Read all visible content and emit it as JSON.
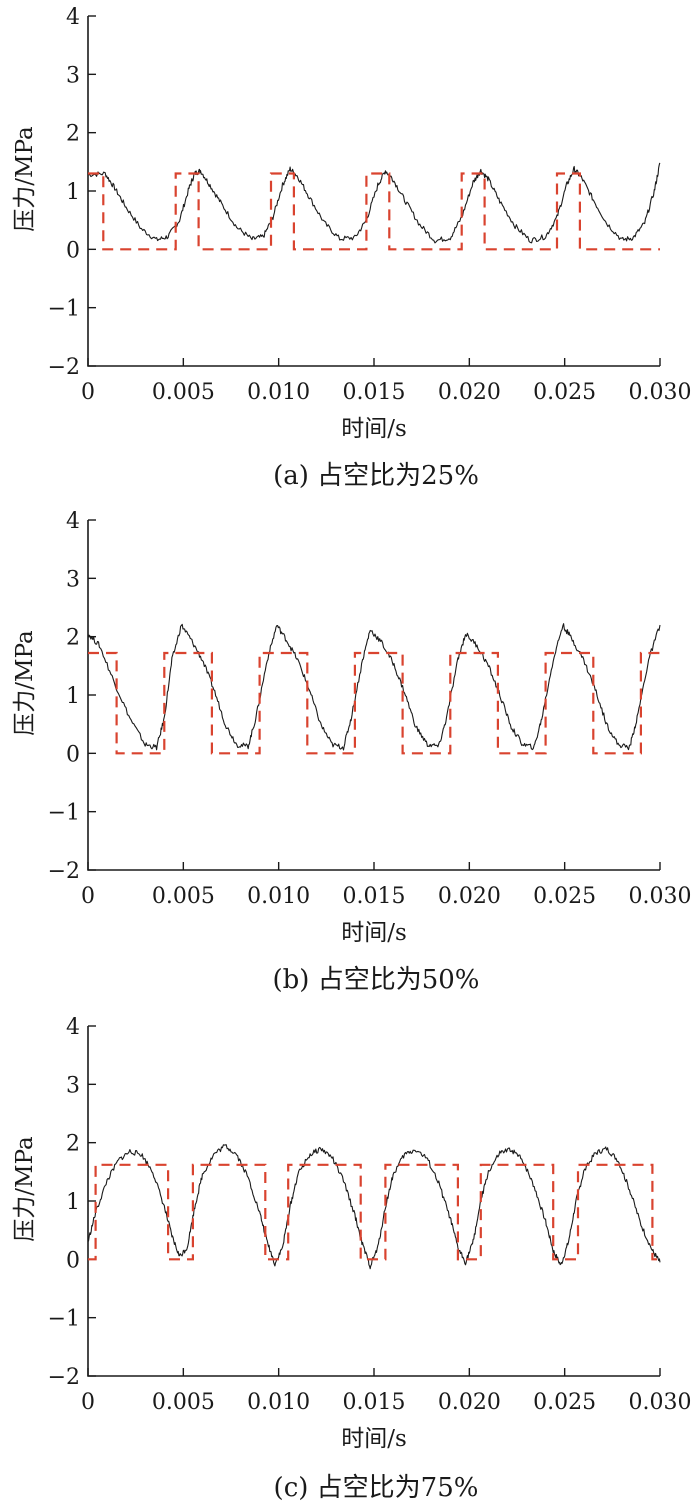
{
  "chart_data": [
    {
      "type": "line",
      "caption": "(a)  占空比为25%",
      "xlabel": "时间/s",
      "ylabel": "压力/MPa",
      "xlim": [
        0,
        0.03
      ],
      "ylim": [
        -2,
        4
      ],
      "xticks": [
        0,
        0.005,
        0.01,
        0.015,
        0.02,
        0.025,
        0.03
      ],
      "xtick_labels": [
        "0",
        "0.005",
        "0.010",
        "0.015",
        "0.020",
        "0.025",
        "0.030"
      ],
      "yticks": [
        -2,
        -1,
        0,
        1,
        2,
        3,
        4
      ],
      "ytick_labels": [
        "−2",
        "−1",
        "0",
        "1",
        "2",
        "3",
        "4"
      ],
      "series": [
        {
          "role": "measured",
          "color": "#1a1a1a",
          "points": [
            [
              0,
              1.28
            ],
            [
              0.0009,
              1.3
            ],
            [
              0.0014,
              1.05
            ],
            [
              0.002,
              0.72
            ],
            [
              0.0028,
              0.35
            ],
            [
              0.0036,
              0.16
            ],
            [
              0.0042,
              0.22
            ],
            [
              0.0048,
              0.5
            ],
            [
              0.0053,
              1.05
            ],
            [
              0.0056,
              1.3
            ],
            [
              0.0059,
              1.35
            ],
            [
              0.0064,
              1.1
            ],
            [
              0.007,
              0.78
            ],
            [
              0.0078,
              0.38
            ],
            [
              0.0086,
              0.17
            ],
            [
              0.0092,
              0.22
            ],
            [
              0.0097,
              0.55
            ],
            [
              0.0102,
              1.1
            ],
            [
              0.0106,
              1.38
            ],
            [
              0.011,
              1.25
            ],
            [
              0.0116,
              0.9
            ],
            [
              0.0124,
              0.45
            ],
            [
              0.0132,
              0.18
            ],
            [
              0.014,
              0.2
            ],
            [
              0.0146,
              0.5
            ],
            [
              0.0152,
              1.1
            ],
            [
              0.0156,
              1.35
            ],
            [
              0.016,
              1.2
            ],
            [
              0.0166,
              0.85
            ],
            [
              0.0174,
              0.42
            ],
            [
              0.0182,
              0.15
            ],
            [
              0.019,
              0.2
            ],
            [
              0.0196,
              0.55
            ],
            [
              0.0202,
              1.15
            ],
            [
              0.0206,
              1.35
            ],
            [
              0.021,
              1.2
            ],
            [
              0.0216,
              0.82
            ],
            [
              0.0224,
              0.4
            ],
            [
              0.0232,
              0.15
            ],
            [
              0.024,
              0.22
            ],
            [
              0.0246,
              0.55
            ],
            [
              0.0251,
              1.1
            ],
            [
              0.0255,
              1.38
            ],
            [
              0.0259,
              1.22
            ],
            [
              0.0265,
              0.85
            ],
            [
              0.0272,
              0.45
            ],
            [
              0.028,
              0.16
            ],
            [
              0.0286,
              0.2
            ],
            [
              0.0292,
              0.45
            ],
            [
              0.0297,
              1.0
            ],
            [
              0.03,
              1.48
            ]
          ]
        },
        {
          "role": "command",
          "color": "#d9432f",
          "low": 0,
          "high": 1.3,
          "high_intervals": [
            [
              0,
              0.0008
            ],
            [
              0.0046,
              0.0058
            ],
            [
              0.0096,
              0.0108
            ],
            [
              0.0146,
              0.0158
            ],
            [
              0.0196,
              0.0208
            ],
            [
              0.0246,
              0.0258
            ]
          ]
        }
      ]
    },
    {
      "type": "line",
      "caption": "(b)  占空比为50%",
      "xlabel": "时间/s",
      "ylabel": "压力/MPa",
      "xlim": [
        0,
        0.03
      ],
      "ylim": [
        -2,
        4
      ],
      "xticks": [
        0,
        0.005,
        0.01,
        0.015,
        0.02,
        0.025,
        0.03
      ],
      "xtick_labels": [
        "0",
        "0.005",
        "0.010",
        "0.015",
        "0.020",
        "0.025",
        "0.030"
      ],
      "yticks": [
        -2,
        -1,
        0,
        1,
        2,
        3,
        4
      ],
      "ytick_labels": [
        "−2",
        "−1",
        "0",
        "1",
        "2",
        "3",
        "4"
      ],
      "series": [
        {
          "role": "measured",
          "color": "#1a1a1a",
          "points": [
            [
              0,
              2.05
            ],
            [
              0.0006,
              1.85
            ],
            [
              0.0014,
              1.2
            ],
            [
              0.0022,
              0.6
            ],
            [
              0.003,
              0.15
            ],
            [
              0.0036,
              0.1
            ],
            [
              0.004,
              0.6
            ],
            [
              0.0044,
              1.6
            ],
            [
              0.0049,
              2.2
            ],
            [
              0.0054,
              1.95
            ],
            [
              0.006,
              1.6
            ],
            [
              0.0066,
              1.1
            ],
            [
              0.0072,
              0.5
            ],
            [
              0.0078,
              0.15
            ],
            [
              0.0084,
              0.12
            ],
            [
              0.0088,
              0.6
            ],
            [
              0.0094,
              1.6
            ],
            [
              0.0099,
              2.2
            ],
            [
              0.0104,
              1.95
            ],
            [
              0.011,
              1.6
            ],
            [
              0.0116,
              1.1
            ],
            [
              0.0122,
              0.5
            ],
            [
              0.0128,
              0.15
            ],
            [
              0.0134,
              0.1
            ],
            [
              0.0138,
              0.6
            ],
            [
              0.0144,
              1.6
            ],
            [
              0.0148,
              2.12
            ],
            [
              0.0154,
              1.9
            ],
            [
              0.016,
              1.55
            ],
            [
              0.0166,
              1.05
            ],
            [
              0.0172,
              0.45
            ],
            [
              0.0178,
              0.15
            ],
            [
              0.0184,
              0.12
            ],
            [
              0.0188,
              0.6
            ],
            [
              0.0194,
              1.6
            ],
            [
              0.0198,
              2.05
            ],
            [
              0.0204,
              1.85
            ],
            [
              0.021,
              1.5
            ],
            [
              0.0216,
              1.0
            ],
            [
              0.0222,
              0.45
            ],
            [
              0.0228,
              0.15
            ],
            [
              0.0234,
              0.1
            ],
            [
              0.0238,
              0.6
            ],
            [
              0.0244,
              1.6
            ],
            [
              0.0249,
              2.2
            ],
            [
              0.0254,
              1.95
            ],
            [
              0.026,
              1.6
            ],
            [
              0.0266,
              1.1
            ],
            [
              0.0272,
              0.5
            ],
            [
              0.0278,
              0.15
            ],
            [
              0.0284,
              0.1
            ],
            [
              0.0288,
              0.6
            ],
            [
              0.0294,
              1.6
            ],
            [
              0.03,
              2.2
            ]
          ]
        },
        {
          "role": "command",
          "color": "#d9432f",
          "low": 0,
          "high": 1.72,
          "high_intervals": [
            [
              0,
              0.0015
            ],
            [
              0.004,
              0.0065
            ],
            [
              0.009,
              0.0115
            ],
            [
              0.014,
              0.0165
            ],
            [
              0.019,
              0.0215
            ],
            [
              0.024,
              0.0265
            ],
            [
              0.029,
              0.03
            ]
          ]
        }
      ]
    },
    {
      "type": "line",
      "caption": "(c)  占空比为75%",
      "xlabel": "时间/s",
      "ylabel": "压力/MPa",
      "xlim": [
        0,
        0.03
      ],
      "ylim": [
        -2,
        4
      ],
      "xticks": [
        0,
        0.005,
        0.01,
        0.015,
        0.02,
        0.025,
        0.03
      ],
      "xtick_labels": [
        "0",
        "0.005",
        "0.010",
        "0.015",
        "0.020",
        "0.025",
        "0.030"
      ],
      "yticks": [
        -2,
        -1,
        0,
        1,
        2,
        3,
        4
      ],
      "ytick_labels": [
        "−2",
        "−1",
        "0",
        "1",
        "2",
        "3",
        "4"
      ],
      "series": [
        {
          "role": "measured",
          "color": "#1a1a1a",
          "points": [
            [
              0,
              0.3
            ],
            [
              0.0004,
              0.8
            ],
            [
              0.001,
              1.35
            ],
            [
              0.0016,
              1.7
            ],
            [
              0.0022,
              1.85
            ],
            [
              0.0028,
              1.8
            ],
            [
              0.0034,
              1.5
            ],
            [
              0.004,
              0.9
            ],
            [
              0.0044,
              0.4
            ],
            [
              0.0048,
              0.05
            ],
            [
              0.0052,
              0.2
            ],
            [
              0.0056,
              0.9
            ],
            [
              0.006,
              1.45
            ],
            [
              0.0066,
              1.8
            ],
            [
              0.0072,
              1.95
            ],
            [
              0.0078,
              1.8
            ],
            [
              0.0084,
              1.4
            ],
            [
              0.009,
              0.8
            ],
            [
              0.0094,
              0.3
            ],
            [
              0.0098,
              -0.08
            ],
            [
              0.0102,
              0.2
            ],
            [
              0.0106,
              0.9
            ],
            [
              0.011,
              1.45
            ],
            [
              0.0116,
              1.78
            ],
            [
              0.0122,
              1.9
            ],
            [
              0.0128,
              1.75
            ],
            [
              0.0134,
              1.35
            ],
            [
              0.014,
              0.75
            ],
            [
              0.0144,
              0.25
            ],
            [
              0.0148,
              -0.12
            ],
            [
              0.0152,
              0.2
            ],
            [
              0.0156,
              0.9
            ],
            [
              0.016,
              1.45
            ],
            [
              0.0166,
              1.8
            ],
            [
              0.0172,
              1.88
            ],
            [
              0.0178,
              1.72
            ],
            [
              0.0184,
              1.3
            ],
            [
              0.019,
              0.7
            ],
            [
              0.0194,
              0.2
            ],
            [
              0.0198,
              -0.05
            ],
            [
              0.0202,
              0.3
            ],
            [
              0.0206,
              1.0
            ],
            [
              0.021,
              1.5
            ],
            [
              0.0216,
              1.82
            ],
            [
              0.0222,
              1.88
            ],
            [
              0.0228,
              1.7
            ],
            [
              0.0234,
              1.25
            ],
            [
              0.024,
              0.65
            ],
            [
              0.0244,
              0.15
            ],
            [
              0.0248,
              -0.1
            ],
            [
              0.0252,
              0.3
            ],
            [
              0.0256,
              1.0
            ],
            [
              0.026,
              1.5
            ],
            [
              0.0266,
              1.82
            ],
            [
              0.0272,
              1.9
            ],
            [
              0.0278,
              1.7
            ],
            [
              0.0284,
              1.2
            ],
            [
              0.029,
              0.6
            ],
            [
              0.0296,
              0.15
            ],
            [
              0.03,
              -0.05
            ]
          ]
        },
        {
          "role": "command",
          "color": "#d9432f",
          "low": 0,
          "high": 1.62,
          "high_intervals": [
            [
              0.0004,
              0.0042
            ],
            [
              0.0055,
              0.0093
            ],
            [
              0.0105,
              0.0143
            ],
            [
              0.0156,
              0.0194
            ],
            [
              0.0206,
              0.0244
            ],
            [
              0.0257,
              0.0296
            ]
          ]
        }
      ]
    }
  ]
}
